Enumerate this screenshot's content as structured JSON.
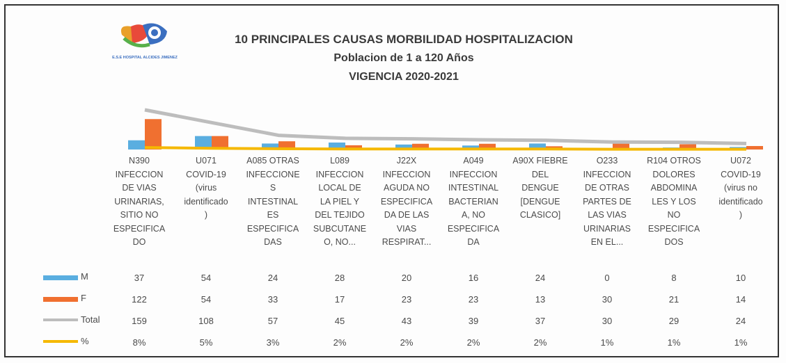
{
  "logo_text": "E.S.E HOSPITAL ALCIDES JIMENEZ",
  "chart_data": {
    "type": "bar",
    "title": "10 PRINCIPALES CAUSAS MORBILIDAD HOSPITALIZACION",
    "subtitle": "Poblacion de 1 a 120 Años",
    "subtitle2": "VIGENCIA 2020-2021",
    "categories": [
      "N390\nINFECCION\nDE VIAS\nURINARIAS,\nSITIO NO\nESPECIFICA\nDO",
      "U071\nCOVID-19\n(virus\nidentificado\n)",
      "A085 OTRAS\nINFECCIONE\nS\nINTESTINAL\nES\nESPECIFICA\nDAS",
      "L089\nINFECCION\nLOCAL DE\nLA PIEL Y\nDEL TEJIDO\nSUBCUTANE\nO, NO...",
      "J22X\nINFECCION\nAGUDA NO\nESPECIFICA\nDA DE LAS\nVIAS\nRESPIRAT...",
      "A049\nINFECCION\nINTESTINAL\nBACTERIAN\nA, NO\nESPECIFICA\nDA",
      "A90X FIEBRE\nDEL\nDENGUE\n[DENGUE\nCLASICO]",
      "O233\nINFECCION\nDE OTRAS\nPARTES DE\nLAS VIAS\nURINARIAS\nEN EL...",
      "R104 OTROS\nDOLORES\nABDOMINA\nLES Y LOS\nNO\nESPECIFICA\nDOS",
      "U072\nCOVID-19\n(virus no\nidentificado\n)"
    ],
    "series": [
      {
        "name": "M",
        "color": "#5aaee0",
        "values": [
          37,
          54,
          24,
          28,
          20,
          16,
          24,
          0,
          8,
          10
        ]
      },
      {
        "name": "F",
        "color": "#f07030",
        "values": [
          122,
          54,
          33,
          17,
          23,
          23,
          13,
          30,
          21,
          14
        ]
      },
      {
        "name": "Total",
        "color": "#bdbdbd",
        "values": [
          159,
          108,
          57,
          45,
          43,
          39,
          37,
          30,
          29,
          24
        ]
      },
      {
        "name": "%",
        "color": "#f5b800",
        "values": [
          8,
          5,
          3,
          2,
          2,
          2,
          2,
          1,
          1,
          1
        ],
        "value_labels": [
          "8%",
          "5%",
          "3%",
          "2%",
          "2%",
          "2%",
          "2%",
          "1%",
          "1%",
          "1%"
        ]
      }
    ]
  }
}
